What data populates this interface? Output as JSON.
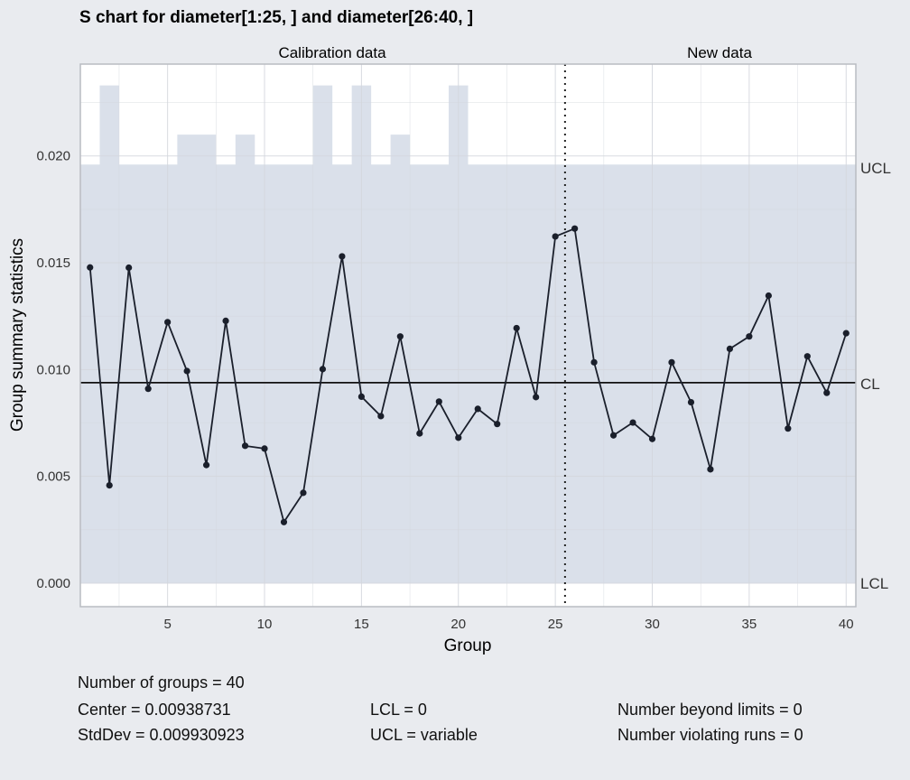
{
  "chart_data": {
    "type": "line",
    "chart_kind": "S chart",
    "title": "S chart for diameter[1:25, ] and diameter[26:40, ]",
    "xlabel": "Group",
    "ylabel": "Group summary statistics",
    "panel_labels": [
      "Calibration data",
      "New data"
    ],
    "x_ticks": [
      5,
      10,
      15,
      20,
      25,
      30,
      35,
      40
    ],
    "y_ticks": [
      "0.000",
      "0.005",
      "0.010",
      "0.015",
      "0.020"
    ],
    "xlim": [
      0.5,
      40.5
    ],
    "ylim": [
      -0.0011,
      0.0243
    ],
    "grid": true,
    "calibration_groups": 25,
    "series": [
      {
        "values": [
          0.01478,
          0.00458,
          0.01477,
          0.0091,
          0.01222,
          0.00993,
          0.00553,
          0.01228,
          0.00643,
          0.0063,
          0.00286,
          0.00423,
          0.01002,
          0.0153,
          0.00873,
          0.00782,
          0.01155,
          0.00701,
          0.0085,
          0.00681,
          0.00816,
          0.00745,
          0.01194,
          0.00871,
          0.01623,
          0.0166,
          0.01034,
          0.00692,
          0.00752,
          0.00675,
          0.01034,
          0.00847,
          0.00533,
          0.01097,
          0.01155,
          0.01346,
          0.00724,
          0.01062,
          0.00891,
          0.0117
        ]
      }
    ],
    "center_line": 0.00938731,
    "lcl": 0,
    "ucl_per_group": [
      0.0196,
      0.0233,
      0.0196,
      0.0196,
      0.0196,
      0.021,
      0.021,
      0.0196,
      0.021,
      0.0196,
      0.0196,
      0.0196,
      0.0233,
      0.0196,
      0.0233,
      0.0196,
      0.021,
      0.0196,
      0.0196,
      0.0233,
      0.0196,
      0.0196,
      0.0196,
      0.0196,
      0.0196,
      0.0196,
      0.0196,
      0.0196,
      0.0196,
      0.0196,
      0.0196,
      0.0196,
      0.0196,
      0.0196,
      0.0196,
      0.0196,
      0.0196,
      0.0196,
      0.0196,
      0.0196
    ],
    "limit_labels": {
      "ucl": "UCL",
      "cl": "CL",
      "lcl": "LCL"
    },
    "colors": {
      "background": "#e9ebef",
      "panel": "#ffffff",
      "band": "#dae0ea",
      "grid": "#d4d7dd",
      "line": "#1a1f2b",
      "border": "#b9bcc2"
    }
  },
  "stats": {
    "groups": "Number of groups = 40",
    "center": "Center = 0.00938731",
    "stddev": "StdDev = 0.009930923",
    "lcl": "LCL = 0",
    "ucl": "UCL = variable",
    "beyond": "Number beyond limits = 0",
    "violating": "Number violating runs = 0"
  }
}
